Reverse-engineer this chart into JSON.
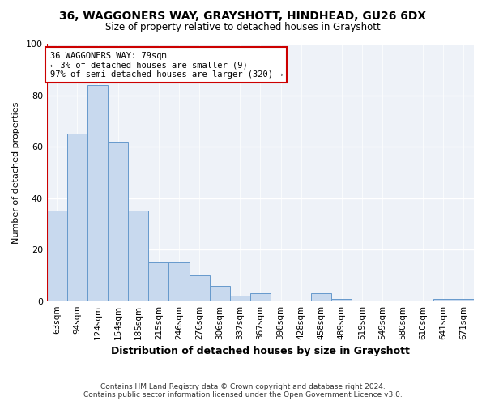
{
  "title": "36, WAGGONERS WAY, GRAYSHOTT, HINDHEAD, GU26 6DX",
  "subtitle": "Size of property relative to detached houses in Grayshott",
  "xlabel": "Distribution of detached houses by size in Grayshott",
  "ylabel": "Number of detached properties",
  "bar_labels": [
    "63sqm",
    "94sqm",
    "124sqm",
    "154sqm",
    "185sqm",
    "215sqm",
    "246sqm",
    "276sqm",
    "306sqm",
    "337sqm",
    "367sqm",
    "398sqm",
    "428sqm",
    "458sqm",
    "489sqm",
    "519sqm",
    "549sqm",
    "580sqm",
    "610sqm",
    "641sqm",
    "671sqm"
  ],
  "bar_values": [
    35,
    65,
    84,
    62,
    35,
    15,
    15,
    10,
    6,
    2,
    3,
    0,
    0,
    3,
    1,
    0,
    0,
    0,
    0,
    1,
    1
  ],
  "bar_color": "#c8d9ee",
  "bar_edge_color": "#6699cc",
  "annotation_line1": "36 WAGGONERS WAY: 79sqm",
  "annotation_line2": "← 3% of detached houses are smaller (9)",
  "annotation_line3": "97% of semi-detached houses are larger (320) →",
  "annotation_box_color": "#ffffff",
  "annotation_box_edge": "#cc0000",
  "marker_line_color": "#cc0000",
  "ylim": [
    0,
    100
  ],
  "bg_color": "#ffffff",
  "plot_bg_color": "#eef2f8",
  "grid_color": "#ffffff",
  "footer_line1": "Contains HM Land Registry data © Crown copyright and database right 2024.",
  "footer_line2": "Contains public sector information licensed under the Open Government Licence v3.0."
}
